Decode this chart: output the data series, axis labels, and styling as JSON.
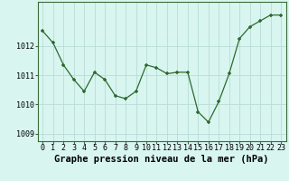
{
  "x": [
    0,
    1,
    2,
    3,
    4,
    5,
    6,
    7,
    8,
    9,
    10,
    11,
    12,
    13,
    14,
    15,
    16,
    17,
    18,
    19,
    20,
    21,
    22,
    23
  ],
  "y": [
    1012.5,
    1012.1,
    1011.35,
    1010.85,
    1010.45,
    1011.1,
    1010.85,
    1010.3,
    1010.2,
    1010.45,
    1011.35,
    1011.25,
    1011.05,
    1011.1,
    1011.1,
    1009.75,
    1009.4,
    1010.1,
    1011.05,
    1012.25,
    1012.65,
    1012.85,
    1013.05,
    1013.05
  ],
  "line_color": "#2d6a2d",
  "marker_color": "#2d6a2d",
  "bg_color": "#d8f5f0",
  "grid_color": "#b8dcd8",
  "title": "Graphe pression niveau de la mer (hPa)",
  "ylim_min": 1008.75,
  "ylim_max": 1013.5,
  "yticks": [
    1009,
    1010,
    1011,
    1012
  ],
  "xticks": [
    0,
    1,
    2,
    3,
    4,
    5,
    6,
    7,
    8,
    9,
    10,
    11,
    12,
    13,
    14,
    15,
    16,
    17,
    18,
    19,
    20,
    21,
    22,
    23
  ],
  "title_fontsize": 7.5,
  "tick_fontsize": 6,
  "title_fontweight": "bold"
}
